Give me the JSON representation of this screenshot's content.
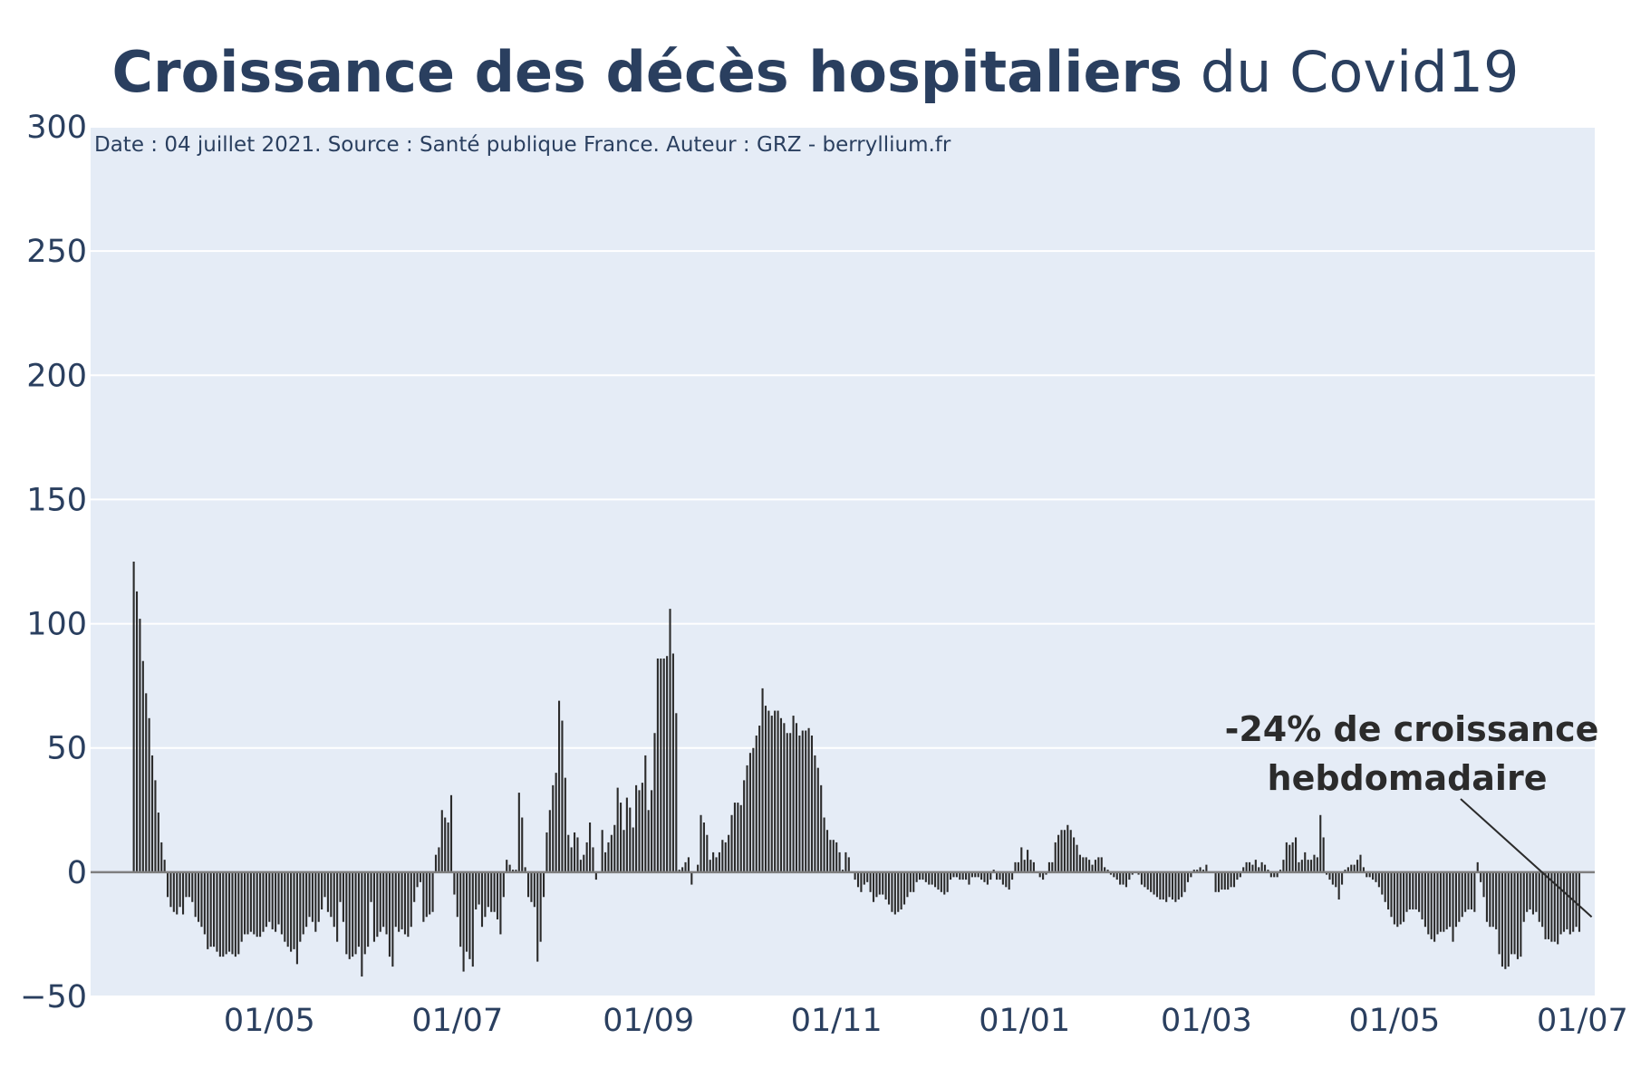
{
  "title": {
    "bold": "Croissance des décès hospitaliers",
    "regular": "du Covid19"
  },
  "source_text": "Date : 04 juillet 2021. Source : Santé publique France. Auteur : GRZ - berryllium.fr",
  "annotation": {
    "line1": "-24% de croissance",
    "line2": "hebdomadaire"
  },
  "colors": {
    "plot_bg": "#e5ecf6",
    "grid": "#ffffff",
    "bar": "#2b2b2b",
    "text": "#2a3f5f",
    "zero_line": "#7f7f7f"
  },
  "chart_data": {
    "type": "bar",
    "title": "Croissance des décès hospitaliers du Covid19",
    "xlabel": "",
    "ylabel": "",
    "ylim": [
      -50,
      300
    ],
    "y_ticks": [
      -50,
      0,
      50,
      100,
      150,
      200,
      250,
      300
    ],
    "y_tick_labels": [
      "−50",
      "0",
      "50",
      "100",
      "150",
      "200",
      "250",
      "300"
    ],
    "x_range": [
      "2020-03-04",
      "2021-07-05"
    ],
    "x_ticks": [
      "2020-05-01",
      "2020-07-01",
      "2020-09-01",
      "2020-11-01",
      "2021-01-01",
      "2021-03-01",
      "2021-05-01",
      "2021-07-01"
    ],
    "x_tick_labels": [
      "01/05",
      "01/07",
      "01/09",
      "01/11",
      "01/01",
      "01/03",
      "01/05",
      "01/07"
    ],
    "grid": true,
    "series": [
      {
        "x_start": "2020-03-18",
        "x_step_days": 1,
        "zero_before": true,
        "values": [
          125,
          113,
          102,
          85,
          72,
          62,
          47,
          37,
          24,
          12,
          5,
          -10,
          -14,
          -16,
          -17,
          -14,
          -17,
          -10,
          -10,
          -12,
          -18,
          -20,
          -22,
          -25,
          -31,
          -30,
          -30,
          -32,
          -34,
          -34,
          -33,
          -32,
          -33,
          -34,
          -33,
          -28,
          -25,
          -25,
          -24,
          -25,
          -26,
          -26,
          -24,
          -22,
          -20,
          -23,
          -24,
          -21,
          -25,
          -28,
          -30,
          -32,
          -31,
          -37,
          -28,
          -25,
          -22,
          -18,
          -20,
          -24,
          -20,
          -15,
          -10,
          -16,
          -18,
          -22,
          -28,
          -12,
          -20,
          -33,
          -35,
          -34,
          -33,
          -30,
          -42,
          -33,
          -30,
          -12,
          -28,
          -26,
          -24,
          -22,
          -25,
          -34,
          -38,
          -22,
          -24,
          -23,
          -25,
          -26,
          -22,
          -12,
          -6,
          -4,
          -20,
          -18,
          -17,
          -16,
          7,
          10,
          25,
          22,
          20,
          31,
          -9,
          -18,
          -30,
          -40,
          -32,
          -35,
          -38,
          -15,
          -13,
          -22,
          -18,
          -14,
          -16,
          -16,
          -19,
          -25,
          -10,
          5,
          3,
          1,
          1,
          32,
          22,
          2,
          -10,
          -12,
          -14,
          -36,
          -28,
          -10,
          16,
          25,
          35,
          40,
          69,
          61,
          38,
          15,
          10,
          16,
          14,
          5,
          7,
          12,
          20,
          10,
          -3,
          0,
          17,
          8,
          12,
          15,
          19,
          34,
          28,
          17,
          30,
          26,
          18,
          35,
          33,
          36,
          47,
          25,
          33,
          56,
          86,
          86,
          86,
          87,
          106,
          88,
          64,
          1,
          2,
          4,
          6,
          -5,
          0,
          3,
          23,
          20,
          15,
          5,
          8,
          6,
          8,
          13,
          12,
          15,
          23,
          28,
          28,
          27,
          37,
          43,
          48,
          50,
          55,
          59,
          74,
          67,
          65,
          63,
          65,
          65,
          62,
          60,
          56,
          56,
          63,
          60,
          55,
          57,
          57,
          58,
          55,
          47,
          42,
          35,
          22,
          17,
          13,
          13,
          12,
          8,
          1,
          8,
          6,
          0,
          -3,
          -6,
          -8,
          -5,
          -4,
          -8,
          -12,
          -10,
          -9,
          -9,
          -11,
          -13,
          -16,
          -17,
          -16,
          -15,
          -13,
          -10,
          -8,
          -8,
          -4,
          -3,
          -3,
          -4,
          -5,
          -5,
          -6,
          -7,
          -8,
          -9,
          -8,
          -3,
          -2,
          -2,
          -3,
          -3,
          -3,
          -5,
          -2,
          -2,
          -2,
          -3,
          -4,
          -5,
          -3,
          1,
          -3,
          -3,
          -5,
          -6,
          -7,
          -3,
          4,
          4,
          10,
          5,
          9,
          5,
          4,
          0,
          -2,
          -3,
          -1,
          4,
          4,
          12,
          15,
          17,
          17,
          19,
          17,
          14,
          11,
          7,
          6,
          6,
          5,
          3,
          5,
          6,
          6,
          2,
          1,
          -1,
          -2,
          -3,
          -5,
          -5,
          -6,
          -3,
          -1,
          0,
          -1,
          -5,
          -6,
          -7,
          -8,
          -9,
          -10,
          -11,
          -11,
          -12,
          -10,
          -11,
          -12,
          -11,
          -10,
          -8,
          -4,
          -2,
          1,
          1,
          2,
          1,
          3,
          0,
          0,
          -8,
          -8,
          -7,
          -7,
          -7,
          -6,
          -6,
          -3,
          -2,
          2,
          4,
          4,
          3,
          5,
          2,
          4,
          3,
          1,
          -2,
          -2,
          -2,
          1,
          5,
          12,
          11,
          12,
          14,
          4,
          5,
          8,
          5,
          5,
          7,
          6,
          23,
          14,
          -1,
          -3,
          -5,
          -6,
          -11,
          -5,
          1,
          2,
          3,
          3,
          5,
          7,
          2,
          -2,
          -2,
          -3,
          -4,
          -6,
          -9,
          -12,
          -15,
          -18,
          -21,
          -22,
          -21,
          -20,
          -16,
          -15,
          -15,
          -15,
          -16,
          -19,
          -22,
          -25,
          -27,
          -28,
          -25,
          -24,
          -24,
          -23,
          -22,
          -28,
          -22,
          -20,
          -18,
          -16,
          -15,
          -15,
          -16,
          4,
          -4,
          -10,
          -20,
          -22,
          -22,
          -23,
          -33,
          -38,
          -39,
          -38,
          -33,
          -33,
          -35,
          -34,
          -20,
          -16,
          -15,
          -17,
          -16,
          -20,
          -22,
          -27,
          -27,
          -28,
          -28,
          -29,
          -25,
          -24,
          -23,
          -25,
          -24,
          -22,
          -24
        ]
      }
    ],
    "annotations": [
      {
        "text": "-24% de croissance hebdomadaire",
        "x": "2021-07-04",
        "y": -18
      }
    ]
  }
}
